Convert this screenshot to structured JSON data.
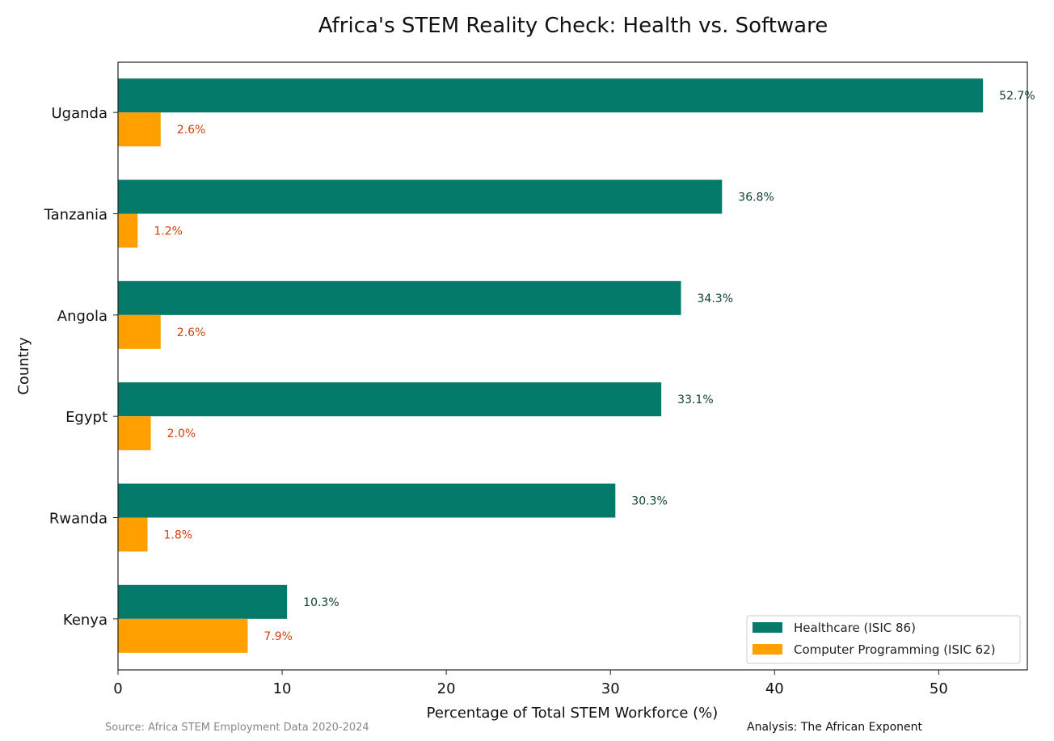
{
  "chart_data": {
    "type": "bar",
    "orientation": "horizontal",
    "title": "Africa's STEM Reality Check: Health vs. Software",
    "xlabel": "Percentage of Total STEM Workforce (%)",
    "ylabel": "Country",
    "xlim": [
      0,
      55.4
    ],
    "xticks": [
      0,
      10,
      20,
      30,
      40,
      50
    ],
    "categories": [
      "Uganda",
      "Tanzania",
      "Angola",
      "Egypt",
      "Rwanda",
      "Kenya"
    ],
    "series": [
      {
        "name": "Healthcare (ISIC 86)",
        "color": "#047a6b",
        "label_color": "#0b3d33",
        "values": [
          52.7,
          36.8,
          34.3,
          33.1,
          30.3,
          10.3
        ],
        "labels": [
          "52.7%",
          "36.8%",
          "34.3%",
          "33.1%",
          "30.3%",
          "10.3%"
        ]
      },
      {
        "name": "Computer Programming (ISIC 62)",
        "color": "#ffa000",
        "label_color": "#d2400e",
        "values": [
          2.6,
          1.2,
          2.6,
          2.0,
          1.8,
          7.9
        ],
        "labels": [
          "2.6%",
          "1.2%",
          "2.6%",
          "2.0%",
          "1.8%",
          "7.9%"
        ]
      }
    ],
    "legend_position": "bottom-right",
    "grid": false
  },
  "footer": {
    "source": "Source: Africa STEM Employment Data 2020-2024",
    "analysis": "Analysis: The African Exponent"
  }
}
